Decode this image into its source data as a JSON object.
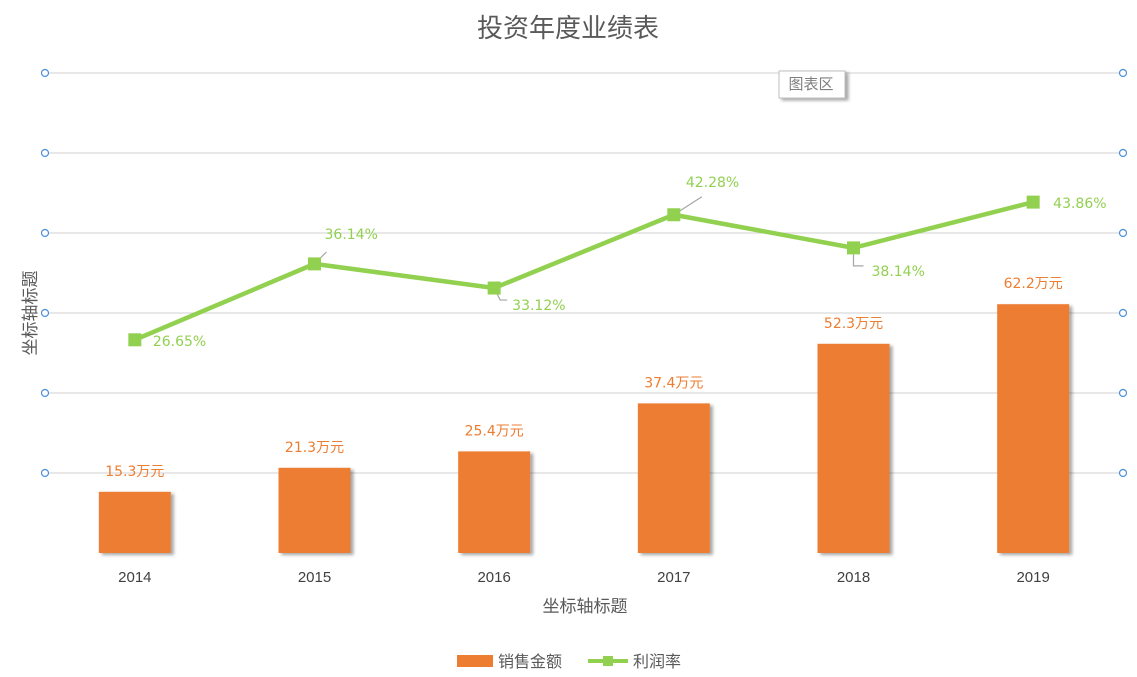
{
  "chart_area_tag": "图表区",
  "chart_data": {
    "type": "bar",
    "title": "投资年度业绩表",
    "xlabel": "坐标轴标题",
    "ylabel": "坐标轴标题",
    "categories": [
      "2014",
      "2015",
      "2016",
      "2017",
      "2018",
      "2019"
    ],
    "series": [
      {
        "name": "销售金额",
        "type": "bar",
        "values": [
          15.3,
          21.3,
          25.4,
          37.4,
          52.3,
          62.2
        ],
        "labels": [
          "15.3万元",
          "21.3万元",
          "25.4万元",
          "37.4万元",
          "52.3万元",
          "62.2万元"
        ],
        "color": "#ED7D31",
        "axis": "primary",
        "ylim": [
          0,
          120
        ]
      },
      {
        "name": "利润率",
        "type": "line",
        "values": [
          26.65,
          36.14,
          33.12,
          42.28,
          38.14,
          43.86
        ],
        "labels": [
          "26.65%",
          "36.14%",
          "33.12%",
          "42.28%",
          "38.14%",
          "43.86%"
        ],
        "color": "#92D050",
        "axis": "secondary",
        "ylim": [
          0,
          60
        ]
      }
    ],
    "grid": true,
    "legend": "bottom"
  }
}
